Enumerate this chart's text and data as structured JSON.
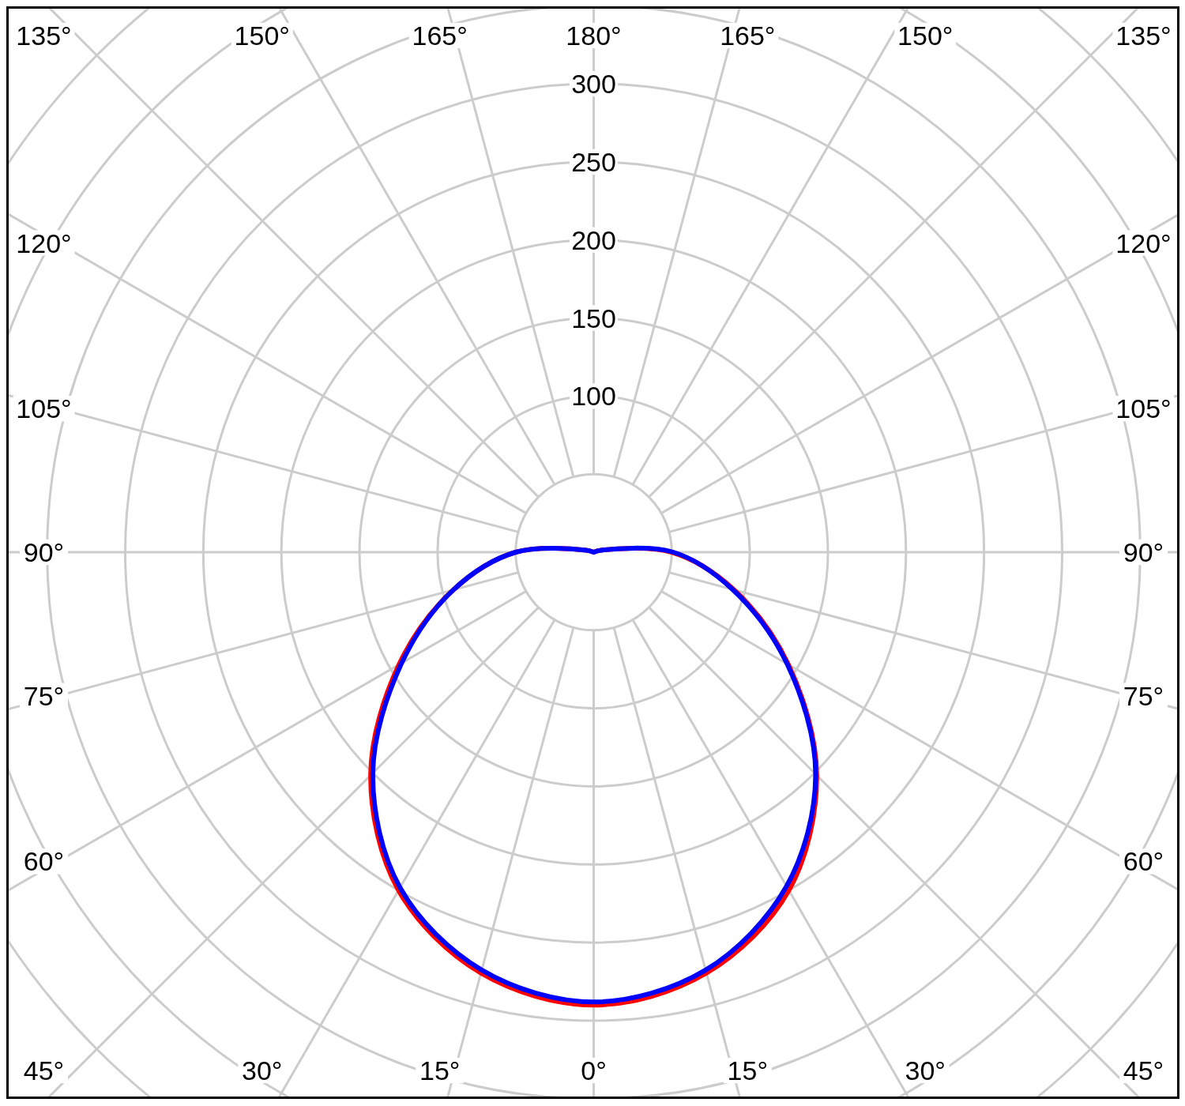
{
  "chart_data": {
    "type": "radar",
    "categories": [
      "180°",
      "165°",
      "150°",
      "135°",
      "120°",
      "105°",
      "90°",
      "75°",
      "60°",
      "45°",
      "30°",
      "15°",
      "0°",
      "15°",
      "30°",
      "45°",
      "60°",
      "75°",
      "90°",
      "105°",
      "120°",
      "135°",
      "150°",
      "165°"
    ],
    "series": [
      {
        "color": "#ff0000",
        "values": [
          0,
          0,
          0,
          0,
          0,
          5,
          50,
          93,
          144,
          202,
          250,
          279,
          290,
          279,
          250,
          202,
          144,
          93,
          50,
          5,
          0,
          0,
          0,
          0
        ]
      },
      {
        "color": "#0000ff",
        "values": [
          0,
          0,
          0,
          0,
          0,
          5,
          51,
          92,
          143,
          201,
          247,
          277,
          288,
          277,
          248,
          200,
          142,
          93,
          50,
          5,
          0,
          0,
          0,
          0
        ]
      }
    ],
    "ylim": [
      0,
      450
    ],
    "yticks": [
      100,
      150,
      200,
      250,
      300
    ],
    "grid": true
  }
}
